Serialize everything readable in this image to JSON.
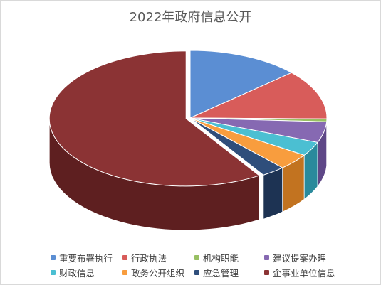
{
  "chart_data": {
    "type": "pie",
    "subtype": "3d-exploded-pie",
    "title": "2022年政府信息公开",
    "categories": [
      "重要布署执行",
      "行政执法",
      "机构职能",
      "建议提案办理",
      "财政信息",
      "政务公开组织",
      "应急管理",
      "企事业单位信息"
    ],
    "values": [
      13.3,
      11.9,
      0.7,
      5.0,
      3.4,
      3.9,
      2.8,
      59.0
    ],
    "unit": "%",
    "colors": [
      "#5b8ed3",
      "#d85c5a",
      "#98c063",
      "#8669b2",
      "#4bbfd2",
      "#f89d3e",
      "#2f4e7b",
      "#8b3334"
    ],
    "side_colors": [
      "#3a63a0",
      "#a23d3b",
      "#6a8f40",
      "#5e4787",
      "#2a8a9c",
      "#c27320",
      "#1d3353",
      "#5e1f20"
    ],
    "legend_position": "bottom"
  }
}
